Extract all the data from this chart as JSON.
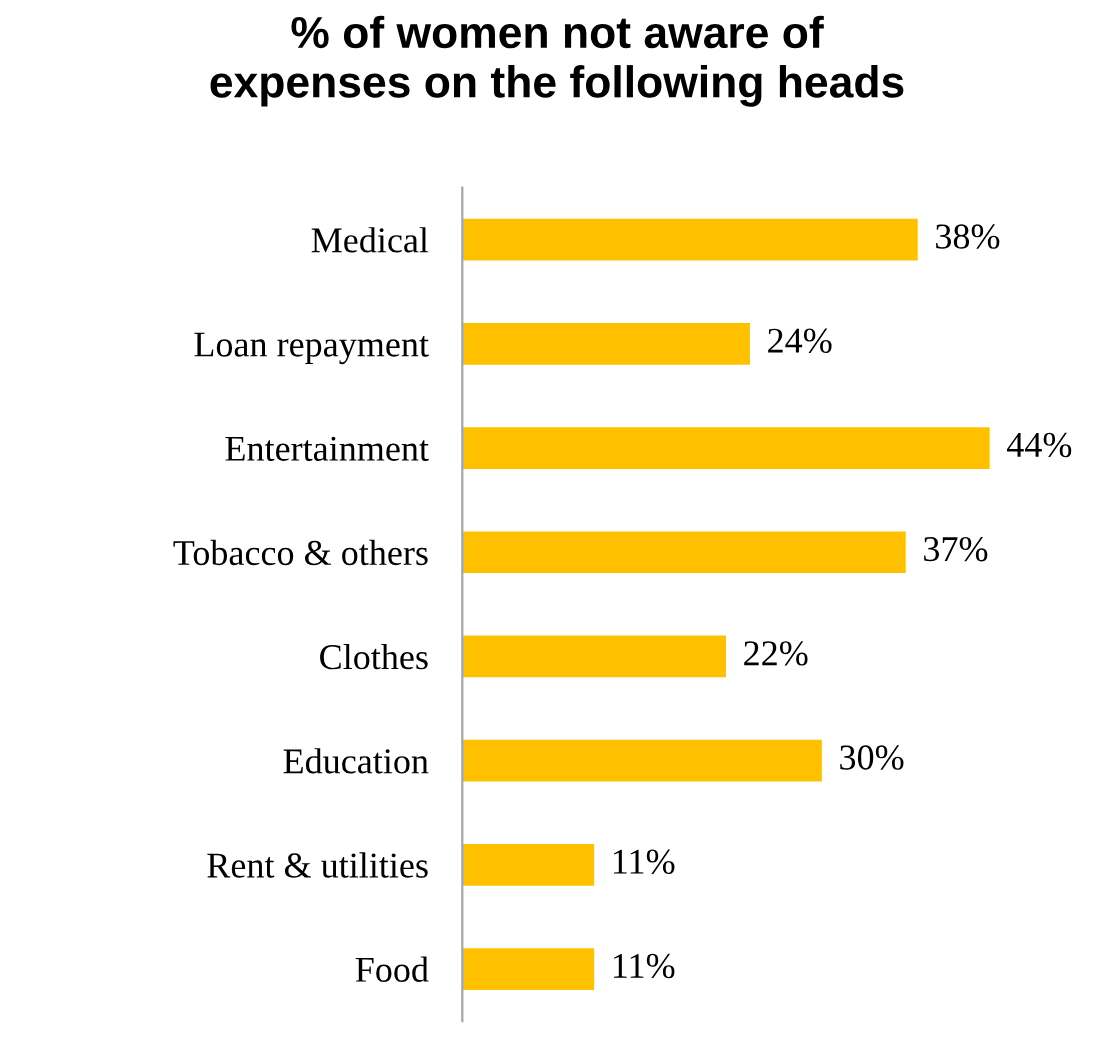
{
  "chart_data": {
    "type": "bar",
    "orientation": "horizontal",
    "title": "% of women not aware of\nexpenses on the following heads",
    "categories": [
      "Medical",
      "Loan repayment",
      "Entertainment",
      "Tobacco & others",
      "Clothes",
      "Education",
      "Rent & utilities",
      "Food"
    ],
    "values": [
      38,
      24,
      44,
      37,
      22,
      30,
      11,
      11
    ],
    "value_labels": [
      "38%",
      "24%",
      "44%",
      "37%",
      "22%",
      "30%",
      "11%",
      "11%"
    ],
    "color": "#ffc000",
    "tick_labels": "y",
    "grid": false
  }
}
